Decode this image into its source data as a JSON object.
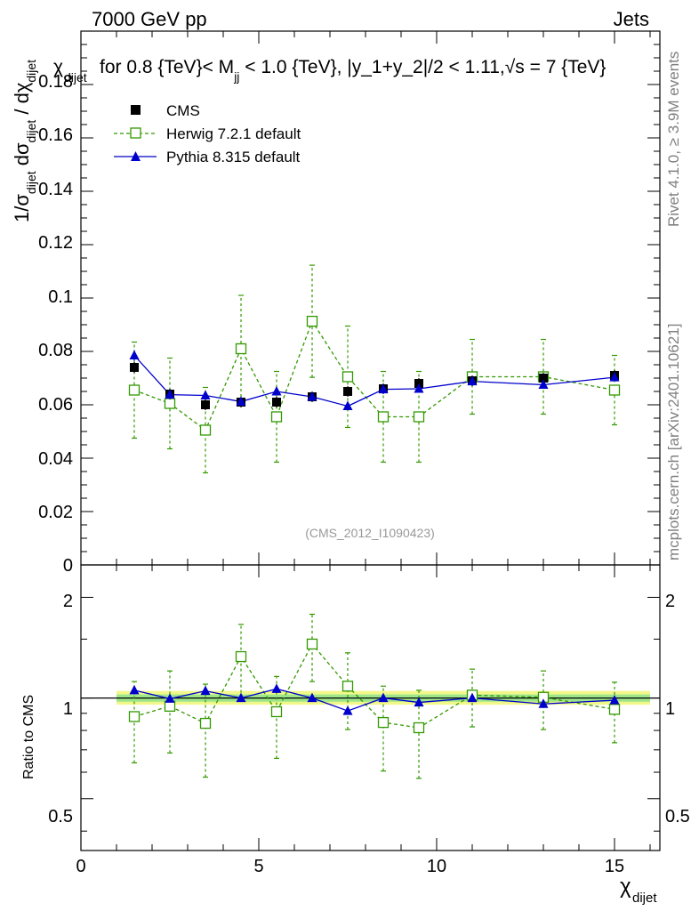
{
  "header": {
    "energy_label": "7000 GeV pp",
    "process_label": "Jets",
    "cut_title": "for 0.8 {TeV}< M",
    "cut_title_sub": "jj",
    "cut_title_rest": " < 1.0 {TeV}, |y_1+y_2|/2 < 1.11,√s = 7 {TeV}",
    "title_prefix": "χ",
    "title_prefix_sub": "dijet"
  },
  "side_labels": {
    "rivet": "Rivet 4.1.0, ≥ 3.9M events",
    "mcplots": "mcplots.cern.ch [arXiv:2401.10621]"
  },
  "watermark": "(CMS_2012_I1090423)",
  "axes": {
    "main_ylabel_parts": [
      "1/σ",
      "dijet",
      " dσ",
      "dijet",
      " / dχ",
      "dijet"
    ],
    "ratio_ylabel": "Ratio to CMS",
    "xlabel": "χ",
    "xlabel_sub": "dijet",
    "main_yticks": [
      "0",
      "0.02",
      "0.04",
      "0.06",
      "0.08",
      "0.1",
      "0.12",
      "0.14",
      "0.16",
      "0.18"
    ],
    "ratio_yticks": [
      "0.5",
      "1",
      "2"
    ],
    "xticks": [
      "0",
      "5",
      "10",
      "15"
    ]
  },
  "legend": [
    {
      "name": "CMS",
      "color": "#000000",
      "marker": "filled-square"
    },
    {
      "name": "Herwig 7.2.1 default",
      "color": "#339900",
      "marker": "open-square"
    },
    {
      "name": "Pythia 8.315 default",
      "color": "#0000cc",
      "marker": "filled-triangle"
    }
  ],
  "chart_data": {
    "type": "scatter",
    "title": "χ_dijet for 0.8 {TeV}< M_jj < 1.0 {TeV}, |y_1+y_2|/2 < 1.11, √s = 7 {TeV}",
    "xlabel": "χ_dijet",
    "ylabel": "1/σ_dijet dσ_dijet / dχ_dijet",
    "xlim": [
      0,
      16.3
    ],
    "ylim": [
      0,
      0.2
    ],
    "ratio_ylim": [
      0.35,
      2.5
    ],
    "x": [
      1.5,
      2.5,
      3.5,
      4.5,
      5.5,
      6.5,
      7.5,
      8.5,
      9.5,
      11,
      13,
      15
    ],
    "x_low": [
      1,
      2,
      3,
      4,
      5,
      6,
      7,
      8,
      9,
      10,
      12,
      14
    ],
    "x_high": [
      2,
      3,
      4,
      5,
      6,
      7,
      8,
      9,
      10,
      12,
      14,
      16
    ],
    "series": [
      {
        "name": "CMS",
        "values": [
          0.074,
          0.064,
          0.06,
          0.061,
          0.061,
          0.063,
          0.065,
          0.066,
          0.068,
          0.069,
          0.07,
          0.071
        ],
        "errors": [
          0.002,
          0.002,
          0.002,
          0.002,
          0.002,
          0.002,
          0.002,
          0.002,
          0.002,
          0.002,
          0.002,
          0.002
        ],
        "ratio": [
          1,
          1,
          1,
          1,
          1,
          1,
          1,
          1,
          1,
          1,
          1,
          1
        ]
      },
      {
        "name": "Herwig 7.2.1 default",
        "values": [
          0.0655,
          0.0605,
          0.0505,
          0.081,
          0.0555,
          0.0913,
          0.0705,
          0.0555,
          0.0555,
          0.0705,
          0.0705,
          0.0655
        ],
        "errors": [
          0.018,
          0.017,
          0.016,
          0.02,
          0.017,
          0.021,
          0.019,
          0.017,
          0.017,
          0.014,
          0.014,
          0.013
        ],
        "ratio": [
          0.88,
          0.945,
          0.84,
          1.33,
          0.91,
          1.45,
          1.085,
          0.845,
          0.815,
          1.02,
          1.005,
          0.925
        ],
        "ratio_errors": [
          0.24,
          0.26,
          0.26,
          0.33,
          0.25,
          0.33,
          0.28,
          0.24,
          0.24,
          0.2,
          0.2,
          0.19
        ]
      },
      {
        "name": "Pythia 8.315 default",
        "values": [
          0.0785,
          0.0638,
          0.0635,
          0.0612,
          0.065,
          0.063,
          0.0595,
          0.0658,
          0.066,
          0.0688,
          0.0675,
          0.0703
        ],
        "errors": [
          0.002,
          0.0015,
          0.0015,
          0.0015,
          0.0015,
          0.0015,
          0.0015,
          0.0015,
          0.0015,
          0.0015,
          0.0015,
          0.0015
        ],
        "ratio": [
          1.055,
          0.995,
          1.05,
          1.0,
          1.065,
          1.0,
          0.915,
          1.0,
          0.97,
          1.0,
          0.96,
          0.985
        ],
        "ratio_errors": [
          0.03,
          0.02,
          0.02,
          0.02,
          0.025,
          0.02,
          0.02,
          0.02,
          0.02,
          0.02,
          0.02,
          0.02
        ]
      }
    ],
    "ratio_band": {
      "inner": [
        0.975,
        1.025
      ],
      "outer": [
        0.955,
        1.05
      ],
      "x_range": [
        1,
        16
      ]
    }
  }
}
